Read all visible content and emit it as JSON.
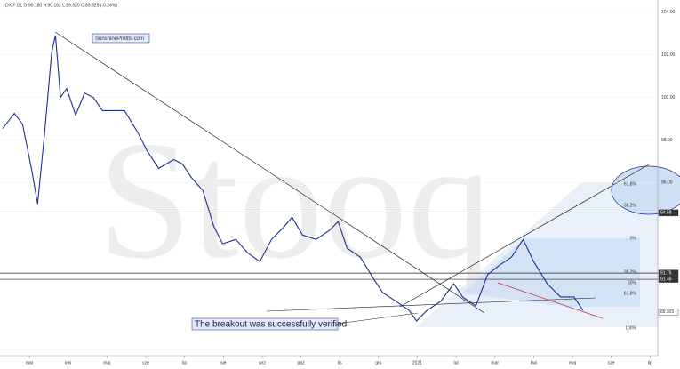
{
  "chart_data": {
    "type": "line",
    "title": "DX.F D1 O:90.180 H:90.182 L:89.920 C:89.925 (-0.24%)",
    "watermark": "Stooq",
    "legend_text": "SunshineProfits.com",
    "annotation": "The breakout was successfully verified",
    "fib_labels": [
      "61.8%",
      "38.2%",
      "0%",
      "38.2%",
      "50%",
      "61.8%",
      "100%"
    ],
    "levels": [
      94.58,
      91.75,
      91.46,
      89.925
    ],
    "x": [
      0.31,
      0.61,
      0.82,
      1.05,
      1.21,
      1.39,
      1.57,
      1.67,
      1.8,
      1.96,
      2.19,
      2.42,
      2.65,
      2.88,
      3.11,
      3.45,
      3.8,
      4.03,
      4.33,
      4.72,
      4.94,
      5.17,
      5.47,
      5.75,
      5.98,
      6.32,
      6.62,
      6.94,
      7.24,
      7.58,
      7.77,
      8.04,
      8.39,
      8.73,
      8.96,
      9.19,
      9.53,
      9.88,
      10.11,
      10.45,
      10.79,
      10.98,
      11.25,
      11.6,
      11.94,
      12.17,
      12.51,
      12.81,
      13.09,
      13.43,
      13.73,
      14.0,
      14.35,
      14.69,
      15.04,
      15.27
    ],
    "series": [
      {
        "name": "DX.F",
        "color": "#1f2f8f",
        "values": [
          98.54,
          99.25,
          98.75,
          96.67,
          95.0,
          98.33,
          102.08,
          102.92,
          100.0,
          100.42,
          99.17,
          100.21,
          100.0,
          99.38,
          99.38,
          99.38,
          98.33,
          97.5,
          96.67,
          97.08,
          96.88,
          96.25,
          95.63,
          93.96,
          93.13,
          93.33,
          92.71,
          92.29,
          93.33,
          93.96,
          94.38,
          93.54,
          93.33,
          93.75,
          94.17,
          92.92,
          92.5,
          91.46,
          90.83,
          90.42,
          90.0,
          89.5,
          90.0,
          90.42,
          91.25,
          90.63,
          90.21,
          91.67,
          92.08,
          92.5,
          93.33,
          92.29,
          91.25,
          90.63,
          90.63,
          90.0
        ]
      }
    ],
    "xlim": [
      0.24,
      17.2
    ],
    "ylim": [
      87.87,
      104.58
    ],
    "xticks": [
      {
        "value": 1,
        "label": "mar"
      },
      {
        "value": 2,
        "label": "kwi"
      },
      {
        "value": 3,
        "label": "maj"
      },
      {
        "value": 4,
        "label": "cze"
      },
      {
        "value": 5,
        "label": "lip"
      },
      {
        "value": 6,
        "label": "sie"
      },
      {
        "value": 7,
        "label": "wrz"
      },
      {
        "value": 8,
        "label": "paź"
      },
      {
        "value": 9,
        "label": "lis"
      },
      {
        "value": 10,
        "label": "gru"
      },
      {
        "value": 11,
        "label": "2021"
      },
      {
        "value": 12,
        "label": "lut"
      },
      {
        "value": 13,
        "label": "mar"
      },
      {
        "value": 14,
        "label": "kwi"
      },
      {
        "value": 15,
        "label": "maj"
      },
      {
        "value": 16,
        "label": "cze"
      },
      {
        "value": 17,
        "label": "lip"
      }
    ],
    "yticks": [
      {
        "value": 104,
        "label": "104.00"
      },
      {
        "value": 102,
        "label": "102.00"
      },
      {
        "value": 100,
        "label": "100.00"
      },
      {
        "value": 98,
        "label": "98.00"
      },
      {
        "value": 96,
        "label": "96.00"
      }
    ]
  }
}
